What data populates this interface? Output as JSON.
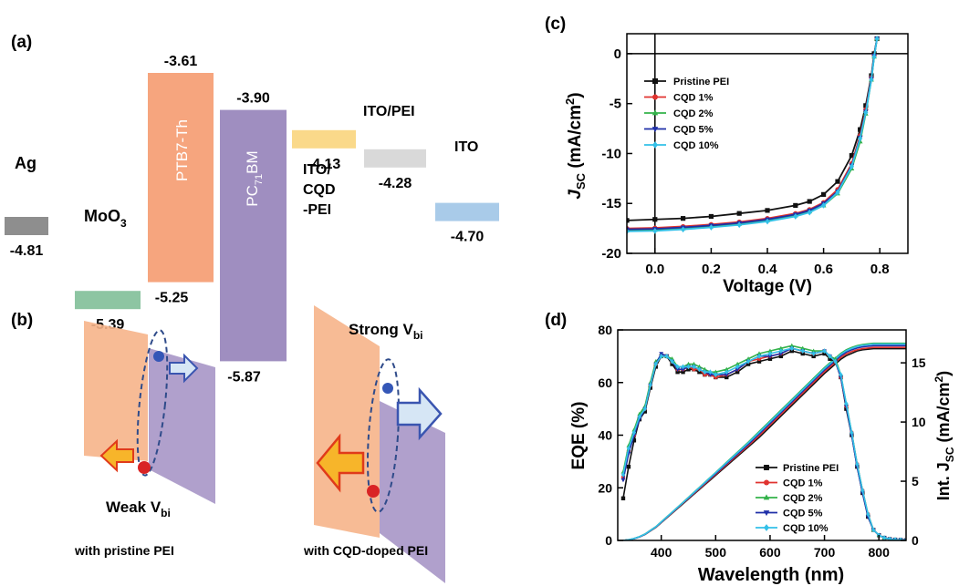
{
  "panels": {
    "a": {
      "label": "(a)",
      "levels": [
        {
          "name": "Ag",
          "values": [
            -4.81
          ],
          "value_labels": [
            "-4.81"
          ],
          "color": "#8e8e8e"
        },
        {
          "name": "MoO",
          "name_sub": "3",
          "values": [
            -5.39
          ],
          "value_labels": [
            "-5.39"
          ],
          "color": "#8dc5a2"
        },
        {
          "name": "PTB7-Th",
          "values": [
            -3.61,
            -5.25
          ],
          "value_labels": [
            "-3.61",
            "-5.25"
          ],
          "color": "#f6a57e"
        },
        {
          "name": "PC",
          "name_sub": "71",
          "name_suffix": "BM",
          "values": [
            -3.9,
            -5.87
          ],
          "value_labels": [
            "-3.90",
            "-5.87"
          ],
          "color": "#9f8ec0"
        },
        {
          "name": "ITO/",
          "name_line2": "CQD",
          "name_line3": "-PEI",
          "values": [
            -4.13
          ],
          "value_labels": [
            "-4.13"
          ],
          "color": "#fad98a"
        },
        {
          "name": "ITO/PEI",
          "values": [
            -4.28
          ],
          "value_labels": [
            "-4.28"
          ],
          "color": "#d9d9d9"
        },
        {
          "name": "ITO",
          "values": [
            -4.7
          ],
          "value_labels": [
            "-4.70"
          ],
          "color": "#a9cbe9"
        }
      ]
    },
    "b": {
      "label": "(b)",
      "left": {
        "vbi": "Weak V",
        "vbi_sub": "bi",
        "caption": "with pristine PEI"
      },
      "right": {
        "vbi": "Strong V",
        "vbi_sub": "bi",
        "caption": "with CQD-doped PEI"
      },
      "colors": {
        "donor": "#f6b48a",
        "acceptor": "#a796c6",
        "electron": "#3557b7",
        "hole": "#d92424",
        "arrow_e": "#3a55b0",
        "arrow_h": "#e03a1a"
      }
    }
  },
  "chart_data": [
    {
      "panel": "(c)",
      "type": "line",
      "xlabel": "Voltage (V)",
      "ylabel": "J",
      "ylabel_sub": "SC",
      "ylabel_unit": " (mA/cm",
      "ylabel_sup": "2",
      "ylabel_close": ")",
      "xlim": [
        -0.1,
        0.9
      ],
      "ylim": [
        -20,
        2
      ],
      "xticks": [
        0.0,
        0.2,
        0.4,
        0.6,
        0.8
      ],
      "xtick_labels": [
        "0.0",
        "0.2",
        "0.4",
        "0.6",
        "0.8"
      ],
      "yticks": [
        -20,
        -15,
        -10,
        -5,
        0
      ],
      "ytick_labels": [
        "-20",
        "-15",
        "-10",
        "-5",
        "0"
      ],
      "legend": "top-left",
      "x": [
        -0.1,
        0.0,
        0.1,
        0.2,
        0.3,
        0.4,
        0.5,
        0.55,
        0.6,
        0.65,
        0.7,
        0.73,
        0.75,
        0.77,
        0.78,
        0.79
      ],
      "series": [
        {
          "name": "Pristine PEI",
          "color": "#111111",
          "marker": "square",
          "values": [
            -16.7,
            -16.6,
            -16.5,
            -16.3,
            -16.0,
            -15.7,
            -15.2,
            -14.8,
            -14.1,
            -12.8,
            -10.2,
            -7.6,
            -5.2,
            -2.2,
            0.0,
            1.5
          ]
        },
        {
          "name": "CQD 1%",
          "color": "#e0332f",
          "marker": "circle",
          "values": [
            -17.5,
            -17.45,
            -17.3,
            -17.1,
            -16.85,
            -16.5,
            -16.0,
            -15.6,
            -14.9,
            -13.6,
            -11.0,
            -8.2,
            -5.6,
            -2.4,
            -0.2,
            1.5
          ]
        },
        {
          "name": "CQD 2%",
          "color": "#33b24a",
          "marker": "triangle",
          "values": [
            -17.7,
            -17.65,
            -17.5,
            -17.3,
            -17.05,
            -16.7,
            -16.2,
            -15.8,
            -15.2,
            -14.0,
            -11.5,
            -8.8,
            -6.0,
            -2.6,
            -0.3,
            1.5
          ]
        },
        {
          "name": "CQD 5%",
          "color": "#1f2fa8",
          "marker": "triangle-down",
          "values": [
            -17.6,
            -17.55,
            -17.4,
            -17.2,
            -16.95,
            -16.6,
            -16.1,
            -15.7,
            -15.0,
            -13.8,
            -11.2,
            -8.4,
            -5.8,
            -2.5,
            -0.2,
            1.5
          ]
        },
        {
          "name": "CQD 10%",
          "color": "#33c0e8",
          "marker": "diamond",
          "values": [
            -17.8,
            -17.75,
            -17.6,
            -17.4,
            -17.15,
            -16.8,
            -16.3,
            -15.9,
            -15.2,
            -13.9,
            -11.3,
            -8.5,
            -5.9,
            -2.6,
            -0.3,
            1.5
          ]
        }
      ]
    },
    {
      "panel": "(d)",
      "type": "line",
      "xlabel": "Wavelength (nm)",
      "ylabel": "EQE (%)",
      "ylabel_right": "Int. J",
      "ylabel_right_sub": "SC",
      "ylabel_right_unit": " (mA/cm",
      "ylabel_right_sup": "2",
      "ylabel_right_close": ")",
      "xlim": [
        320,
        850
      ],
      "ylim": [
        0,
        80
      ],
      "ylim_right": [
        0,
        17.78
      ],
      "xticks": [
        400,
        500,
        600,
        700,
        800
      ],
      "xtick_labels": [
        "400",
        "500",
        "600",
        "700",
        "800"
      ],
      "yticks": [
        0,
        20,
        40,
        60,
        80
      ],
      "ytick_labels": [
        "0",
        "20",
        "40",
        "60",
        "80"
      ],
      "yticks_right": [
        0,
        5,
        10,
        15
      ],
      "ytick_right_labels": [
        "0",
        "5",
        "10",
        "15"
      ],
      "legend": "bottom-right",
      "x": [
        330,
        340,
        350,
        360,
        370,
        380,
        390,
        400,
        410,
        420,
        430,
        440,
        450,
        460,
        470,
        480,
        490,
        500,
        520,
        540,
        560,
        580,
        600,
        620,
        640,
        660,
        680,
        700,
        710,
        720,
        730,
        740,
        750,
        760,
        770,
        780,
        790,
        800,
        810,
        820,
        830,
        840,
        850
      ],
      "series": [
        {
          "name": "Pristine PEI",
          "color": "#111111",
          "marker": "square",
          "values": [
            16,
            28,
            38,
            46,
            49,
            58,
            66,
            70,
            70,
            67,
            64,
            64,
            65,
            65,
            64,
            63,
            63,
            62,
            62,
            64,
            67,
            68,
            69,
            70,
            72,
            71,
            70,
            71,
            69,
            68,
            62,
            50,
            40,
            28,
            18,
            9,
            4,
            2,
            1,
            0.5,
            0.3,
            0.2,
            0.1
          ],
          "integrated": [
            0,
            0.05,
            0.15,
            0.3,
            0.5,
            0.8,
            1.1,
            1.5,
            1.9,
            2.3,
            2.7,
            3.1,
            3.5,
            3.9,
            4.3,
            4.7,
            5.1,
            5.5,
            6.3,
            7.1,
            7.9,
            8.7,
            9.6,
            10.5,
            11.4,
            12.3,
            13.2,
            14.1,
            14.5,
            14.9,
            15.3,
            15.6,
            15.8,
            16.0,
            16.1,
            16.15,
            16.2,
            16.2,
            16.2,
            16.2,
            16.2,
            16.2,
            16.2
          ]
        },
        {
          "name": "CQD 1%",
          "color": "#e0332f",
          "marker": "circle",
          "values": [
            24,
            34,
            40,
            47,
            50,
            59,
            67,
            70,
            70,
            68,
            65,
            65,
            66,
            65,
            65,
            63,
            63,
            62,
            63,
            65,
            68,
            69,
            70,
            71,
            73,
            72,
            71,
            72,
            70,
            68,
            62,
            51,
            41,
            29,
            19,
            10,
            4,
            2,
            1,
            0.5,
            0.3,
            0.2,
            0.1
          ],
          "integrated": [
            0,
            0.05,
            0.15,
            0.3,
            0.52,
            0.82,
            1.12,
            1.52,
            1.93,
            2.33,
            2.74,
            3.14,
            3.55,
            3.95,
            4.36,
            4.76,
            5.17,
            5.58,
            6.4,
            7.2,
            8.0,
            8.85,
            9.75,
            10.65,
            11.55,
            12.45,
            13.35,
            14.25,
            14.65,
            15.05,
            15.45,
            15.75,
            15.95,
            16.1,
            16.2,
            16.25,
            16.3,
            16.3,
            16.3,
            16.3,
            16.3,
            16.3,
            16.3
          ]
        },
        {
          "name": "CQD 2%",
          "color": "#33b24a",
          "marker": "triangle",
          "values": [
            26,
            36,
            42,
            48,
            51,
            60,
            68,
            70,
            70,
            69,
            66,
            66,
            67,
            67,
            66,
            65,
            64,
            64,
            65,
            67,
            69,
            71,
            72,
            73,
            74,
            73,
            72,
            72,
            70,
            69,
            63,
            52,
            41,
            29,
            19,
            10,
            4,
            2,
            1,
            0.5,
            0.3,
            0.2,
            0.1
          ],
          "integrated": [
            0,
            0.06,
            0.16,
            0.32,
            0.54,
            0.85,
            1.16,
            1.57,
            1.98,
            2.39,
            2.8,
            3.22,
            3.64,
            4.06,
            4.48,
            4.9,
            5.32,
            5.74,
            6.6,
            7.45,
            8.3,
            9.2,
            10.1,
            11.0,
            11.9,
            12.8,
            13.7,
            14.6,
            15.0,
            15.4,
            15.8,
            16.1,
            16.3,
            16.45,
            16.55,
            16.6,
            16.65,
            16.65,
            16.65,
            16.65,
            16.65,
            16.65,
            16.65
          ]
        },
        {
          "name": "CQD 5%",
          "color": "#1f2fa8",
          "marker": "triangle-down",
          "values": [
            23,
            33,
            40,
            46,
            50,
            59,
            67,
            71,
            70,
            68,
            65,
            65,
            66,
            66,
            65,
            64,
            63,
            63,
            63,
            65,
            68,
            70,
            70,
            71,
            73,
            72,
            71,
            72,
            70,
            68,
            62,
            51,
            40,
            28,
            18,
            9,
            4,
            2,
            1,
            0.5,
            0.3,
            0.2,
            0.1
          ],
          "integrated": [
            0,
            0.05,
            0.15,
            0.31,
            0.52,
            0.83,
            1.14,
            1.54,
            1.95,
            2.36,
            2.77,
            3.18,
            3.59,
            4.0,
            4.42,
            4.83,
            5.24,
            5.65,
            6.48,
            7.3,
            8.12,
            9.0,
            9.9,
            10.8,
            11.7,
            12.6,
            13.5,
            14.4,
            14.8,
            15.2,
            15.6,
            15.9,
            16.1,
            16.25,
            16.35,
            16.4,
            16.45,
            16.45,
            16.45,
            16.45,
            16.45,
            16.45,
            16.45
          ]
        },
        {
          "name": "CQD 10%",
          "color": "#33c0e8",
          "marker": "diamond",
          "values": [
            25,
            35,
            41,
            47,
            50,
            59,
            67,
            70,
            70,
            68,
            66,
            66,
            66,
            66,
            65,
            64,
            64,
            63,
            64,
            66,
            68,
            70,
            71,
            72,
            73,
            72,
            71,
            72,
            70,
            68,
            63,
            52,
            41,
            29,
            19,
            10,
            4,
            2,
            1,
            0.5,
            0.3,
            0.2,
            0.1
          ],
          "integrated": [
            0,
            0.06,
            0.16,
            0.32,
            0.53,
            0.84,
            1.15,
            1.56,
            1.97,
            2.38,
            2.79,
            3.2,
            3.62,
            4.04,
            4.46,
            4.88,
            5.3,
            5.72,
            6.56,
            7.4,
            8.24,
            9.12,
            10.02,
            10.92,
            11.82,
            12.72,
            13.62,
            14.52,
            14.92,
            15.32,
            15.72,
            16.02,
            16.22,
            16.38,
            16.48,
            16.53,
            16.58,
            16.58,
            16.58,
            16.58,
            16.58,
            16.58,
            16.58
          ]
        }
      ]
    }
  ]
}
